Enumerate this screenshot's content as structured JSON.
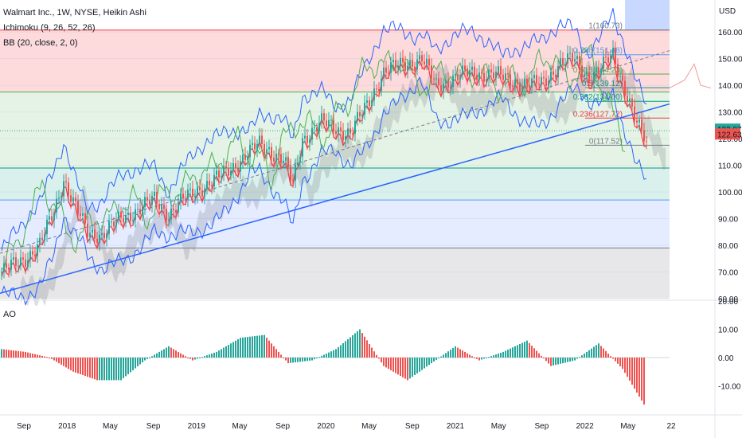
{
  "chart_data": {
    "type": "candlestick",
    "title": "Walmart Inc., 1W, NYSE, Heikin Ashi",
    "indicators": [
      "Ichimoku (9, 26, 52, 26)",
      "BB (20, close, 2, 0)"
    ],
    "currency": "USD",
    "price_axis": {
      "ticks": [
        "160.00",
        "150.00",
        "140.00",
        "130.00",
        "120.00",
        "110.00",
        "100.00",
        "90.00",
        "80.00",
        "70.00",
        "60.00"
      ],
      "range": [
        60,
        172
      ]
    },
    "time_axis": {
      "ticks": [
        "Sep",
        "2018",
        "May",
        "Sep",
        "2019",
        "May",
        "Sep",
        "2020",
        "May",
        "Sep",
        "2021",
        "May",
        "Sep",
        "2022",
        "May",
        "22"
      ]
    },
    "price_badges": [
      {
        "value": "122.97",
        "color": "#26a69a"
      },
      {
        "value": "122.63",
        "color": "#ef5350"
      }
    ],
    "fib_levels": [
      {
        "label": "1(160.73)",
        "value": 160.73,
        "color": "#787b86"
      },
      {
        "label": "0.786(151.48)",
        "value": 151.48,
        "color": "#5b9cf6"
      },
      {
        "label": "0.618(144.23)",
        "value": 144.23,
        "color": "#4caf50"
      },
      {
        "label": "0.5(139.12)",
        "value": 139.12,
        "color": "#089981"
      },
      {
        "label": "0.382(134.00)",
        "value": 134.0,
        "color": "#089981"
      },
      {
        "label": "0.236(127.72)",
        "value": 127.72,
        "color": "#f23645"
      },
      {
        "label": "0(117.52)",
        "value": 117.52,
        "color": "#787b86"
      }
    ],
    "zones": [
      {
        "from": 137.5,
        "to": 160.73,
        "color": "rgba(242,54,69,0.18)",
        "line": "#f23645"
      },
      {
        "from": 109.0,
        "to": 137.5,
        "color": "rgba(76,175,80,0.15)",
        "line": "#4caf50"
      },
      {
        "from": 97.0,
        "to": 109.0,
        "color": "rgba(8,153,129,0.15)",
        "line": "#089981"
      },
      {
        "from": 79.0,
        "to": 97.0,
        "color": "rgba(41,98,255,0.12)",
        "line": "#5b9cf6"
      },
      {
        "from": 60.0,
        "to": 79.0,
        "color": "rgba(120,123,134,0.18)",
        "line": "#787b86"
      }
    ],
    "price_path": [
      [
        0,
        70
      ],
      [
        8,
        74
      ],
      [
        16,
        80
      ],
      [
        22,
        93
      ],
      [
        26,
        105
      ],
      [
        30,
        96
      ],
      [
        36,
        85
      ],
      [
        42,
        84
      ],
      [
        50,
        90
      ],
      [
        58,
        94
      ],
      [
        64,
        97
      ],
      [
        70,
        92
      ],
      [
        76,
        97
      ],
      [
        84,
        102
      ],
      [
        92,
        106
      ],
      [
        100,
        112
      ],
      [
        108,
        118
      ],
      [
        112,
        116
      ],
      [
        118,
        112
      ],
      [
        122,
        103
      ],
      [
        126,
        120
      ],
      [
        134,
        126
      ],
      [
        140,
        124
      ],
      [
        146,
        122
      ],
      [
        152,
        131
      ],
      [
        160,
        145
      ],
      [
        168,
        148
      ],
      [
        176,
        150
      ],
      [
        182,
        140
      ],
      [
        190,
        143
      ],
      [
        198,
        145
      ],
      [
        206,
        144
      ],
      [
        214,
        142
      ],
      [
        220,
        140
      ],
      [
        226,
        141
      ],
      [
        234,
        148
      ],
      [
        240,
        150
      ],
      [
        246,
        143
      ],
      [
        250,
        145
      ],
      [
        256,
        152
      ],
      [
        262,
        136
      ],
      [
        266,
        125
      ],
      [
        270,
        119
      ]
    ],
    "ao": {
      "label": "AO",
      "ticks": [
        "20.00",
        "10.00",
        "0.00",
        "-10.00"
      ],
      "range": [
        -20,
        20
      ],
      "values": [
        3,
        2,
        0,
        -5,
        -8,
        -8,
        -1,
        4,
        -1,
        2,
        7,
        8,
        -2,
        -1,
        3,
        10,
        -3,
        -8,
        -2,
        4,
        -1,
        2,
        6,
        -3,
        -1,
        5,
        -4,
        -18
      ]
    }
  }
}
